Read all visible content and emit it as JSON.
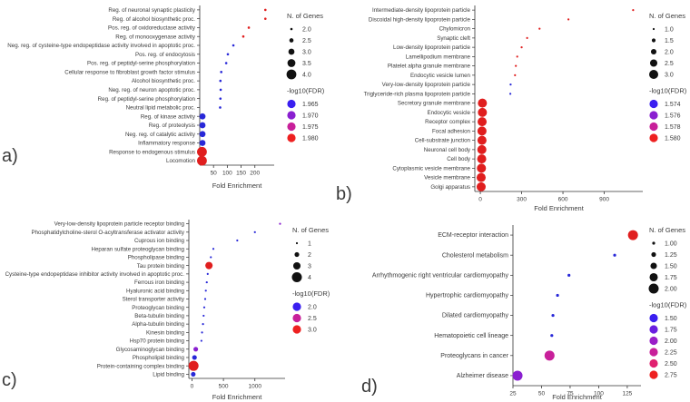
{
  "chart_data": [
    {
      "panel_label": "a)",
      "type": "scatter",
      "xlabel": "Fold Enrichment",
      "xticks": [
        50,
        100,
        150,
        200
      ],
      "xticklabels": [
        "50",
        "100",
        "150",
        "200"
      ],
      "xlim": [
        0,
        270
      ],
      "categories": [
        "Reg. of neuronal synaptic plasticity",
        "Reg. of alcohol biosynthetic proc.",
        "Pos. reg. of oxidoreductase activity",
        "Reg. of monooxygenase activity",
        "Neg. reg. of cysteine-type endopeptidase activity involved in apoptotic proc.",
        "Pos. reg. of endocytosis",
        "Pos. reg. of peptidyl-serine phosphorylation",
        "Cellular response to fibroblast growth factor stimulus",
        "Alcohol biosynthetic proc.",
        "Neg. reg. of neuron apoptotic proc.",
        "Reg. of peptidyl-serine phosphorylation",
        "Neutral lipid metabolic proc.",
        "Reg. of kinase activity",
        "Reg. of proteolysis",
        "Neg. reg. of catalytic activity",
        "Inflammatory response",
        "Response to endogenous stimulus",
        "Locomotion"
      ],
      "x": [
        238,
        238,
        178,
        158,
        122,
        102,
        96,
        78,
        75,
        76,
        75,
        74,
        10,
        10,
        10,
        10,
        8,
        8
      ],
      "size": [
        2,
        2,
        2,
        2,
        2,
        2,
        2,
        2,
        2,
        2,
        2,
        2,
        3,
        3,
        3,
        3,
        4,
        4
      ],
      "color": [
        "#e01e1e",
        "#e01e1e",
        "#e01e1e",
        "#e01e1e",
        "#2828d8",
        "#2828d8",
        "#2828d8",
        "#2828d8",
        "#2828d8",
        "#2828d8",
        "#2828d8",
        "#2828d8",
        "#2828d8",
        "#2828d8",
        "#2828d8",
        "#2828d8",
        "#e01e1e",
        "#e01e1e"
      ],
      "size_legend": {
        "title": "N. of Genes",
        "values": [
          "2.0",
          "2.5",
          "3.0",
          "3.5",
          "4.0"
        ]
      },
      "color_legend": {
        "title": "-log10(FDR)",
        "values": [
          "1.965",
          "1.970",
          "1.975",
          "1.980"
        ],
        "colors": [
          "#3a1ff0",
          "#8a1fd0",
          "#c8209a",
          "#ee2020"
        ]
      }
    },
    {
      "panel_label": "b)",
      "type": "scatter",
      "xlabel": "Fold Enrichment",
      "xticks": [
        0,
        300,
        600,
        900
      ],
      "xticklabels": [
        "0",
        "300",
        "600",
        "900"
      ],
      "xlim": [
        -40,
        1180
      ],
      "categories": [
        "Intermediate-density lipoprotein particle",
        "Discoidal high-density lipoprotein particle",
        "Chylomicron",
        "Synaptic cleft",
        "Low-density lipoprotein particle",
        "Lamellipodium membrane",
        "Platelet alpha granule membrane",
        "Endocytic vesicle lumen",
        "Very-low-density lipoprotein particle",
        "Triglyceride-rich plasma lipoprotein particle",
        "Secretory granule membrane",
        "Endocytic vesicle",
        "Receptor complex",
        "Focal adhesion",
        "Cell-substrate junction",
        "Neuronal cell body",
        "Cell body",
        "Cytoplasmic vesicle membrane",
        "Vesicle membrane",
        "Golgi apparatus"
      ],
      "x": [
        1110,
        640,
        430,
        340,
        300,
        268,
        258,
        252,
        220,
        218,
        15,
        15,
        13,
        12,
        12,
        11,
        10,
        8,
        6,
        6
      ],
      "size": [
        1,
        1,
        1,
        1,
        1,
        1,
        1,
        1,
        1,
        1,
        3,
        3,
        3,
        3,
        3,
        3,
        3,
        3,
        3,
        3
      ],
      "color": [
        "#e01e1e",
        "#e01e1e",
        "#e01e1e",
        "#e01e1e",
        "#e01e1e",
        "#e01e1e",
        "#e01e1e",
        "#e01e1e",
        "#2828d8",
        "#2828d8",
        "#e01e1e",
        "#e01e1e",
        "#e01e1e",
        "#e01e1e",
        "#e01e1e",
        "#e01e1e",
        "#e01e1e",
        "#e01e1e",
        "#e01e1e",
        "#e01e1e"
      ],
      "size_legend": {
        "title": "N. of Genes",
        "values": [
          "1.0",
          "1.5",
          "2.0",
          "2.5",
          "3.0"
        ]
      },
      "color_legend": {
        "title": "-log10(FDR)",
        "values": [
          "1.574",
          "1.576",
          "1.578",
          "1.580"
        ],
        "colors": [
          "#3a1ff0",
          "#8a1fd0",
          "#c8209a",
          "#ee2020"
        ]
      }
    },
    {
      "panel_label": "c)",
      "type": "scatter",
      "xlabel": "Fold Enrichment",
      "xticks": [
        0,
        500,
        1000
      ],
      "xticklabels": [
        "0",
        "500",
        "1000"
      ],
      "xlim": [
        -50,
        1480
      ],
      "categories": [
        "Very-low-density lipoprotein particle receptor binding",
        "Phosphatidylcholine-sterol O-acyltransferase activator activity",
        "Cuprous ion binding",
        "Heparan sulfate proteoglycan binding",
        "Phospholipase binding",
        "Tau protein binding",
        "Cysteine-type endopeptidase inhibitor activity involved in apoptotic proc.",
        "Ferrous iron binding",
        "Hyaluronic acid binding",
        "Sterol transporter activity",
        "Proteoglycan binding",
        "Beta-tubulin binding",
        "Alpha-tubulin binding",
        "Kinesin binding",
        "Hsp70 protein binding",
        "Glycosaminoglycan binding",
        "Phospholipid binding",
        "Protein-containing complex binding",
        "Lipid binding"
      ],
      "x": [
        1400,
        1000,
        720,
        340,
        300,
        270,
        250,
        235,
        220,
        210,
        195,
        185,
        175,
        160,
        150,
        60,
        40,
        25,
        20
      ],
      "size": [
        1,
        1,
        1,
        1,
        1,
        3,
        1,
        1,
        1,
        1,
        1,
        1,
        1,
        1,
        1,
        2,
        2,
        4,
        2
      ],
      "color": [
        "#8a1fd0",
        "#2828d8",
        "#2828d8",
        "#2828d8",
        "#2828d8",
        "#e01e1e",
        "#2828d8",
        "#2828d8",
        "#2828d8",
        "#2828d8",
        "#2828d8",
        "#2828d8",
        "#2828d8",
        "#2828d8",
        "#2828d8",
        "#8a1fd0",
        "#2828d8",
        "#e01e1e",
        "#2828d8"
      ],
      "size_legend": {
        "title": "N. of Genes",
        "values": [
          "1",
          "2",
          "3",
          "4"
        ]
      },
      "color_legend": {
        "title": "-log10(FDR)",
        "values": [
          "2.0",
          "2.5",
          "3.0"
        ],
        "colors": [
          "#3a1ff0",
          "#c8209a",
          "#ee2020"
        ]
      }
    },
    {
      "panel_label": "d)",
      "type": "scatter",
      "xlabel": "Fold Enrichment",
      "xticks": [
        25,
        50,
        75,
        100,
        125
      ],
      "xticklabels": [
        "25",
        "50",
        "75",
        "100",
        "125"
      ],
      "xlim": [
        25,
        137
      ],
      "categories": [
        "ECM-receptor interaction",
        "Cholesterol metabolism",
        "Arrhythmogenic right ventricular cardiomyopathy",
        "Hypertrophic cardiomyopathy",
        "Dilated cardiomyopathy",
        "Hematopoietic cell lineage",
        "Proteoglycans in cancer",
        "Alzheimer disease"
      ],
      "x": [
        130,
        114,
        74,
        64,
        60,
        59,
        57,
        29
      ],
      "size": [
        2,
        1,
        1,
        1,
        1,
        1,
        2,
        2
      ],
      "color": [
        "#e01e1e",
        "#2828d8",
        "#2828d8",
        "#2828d8",
        "#2828d8",
        "#2828d8",
        "#c8209a",
        "#8a1fd0"
      ],
      "size_legend": {
        "title": "N. of Genes",
        "values": [
          "1.00",
          "1.25",
          "1.50",
          "1.75",
          "2.00"
        ]
      },
      "color_legend": {
        "title": "-log10(FDR)",
        "values": [
          "1.50",
          "1.75",
          "2.00",
          "2.25",
          "2.50",
          "2.75"
        ],
        "colors": [
          "#3a1ff0",
          "#6a1fe0",
          "#9a1fc8",
          "#c8209a",
          "#e02070",
          "#ee2020"
        ]
      }
    }
  ]
}
